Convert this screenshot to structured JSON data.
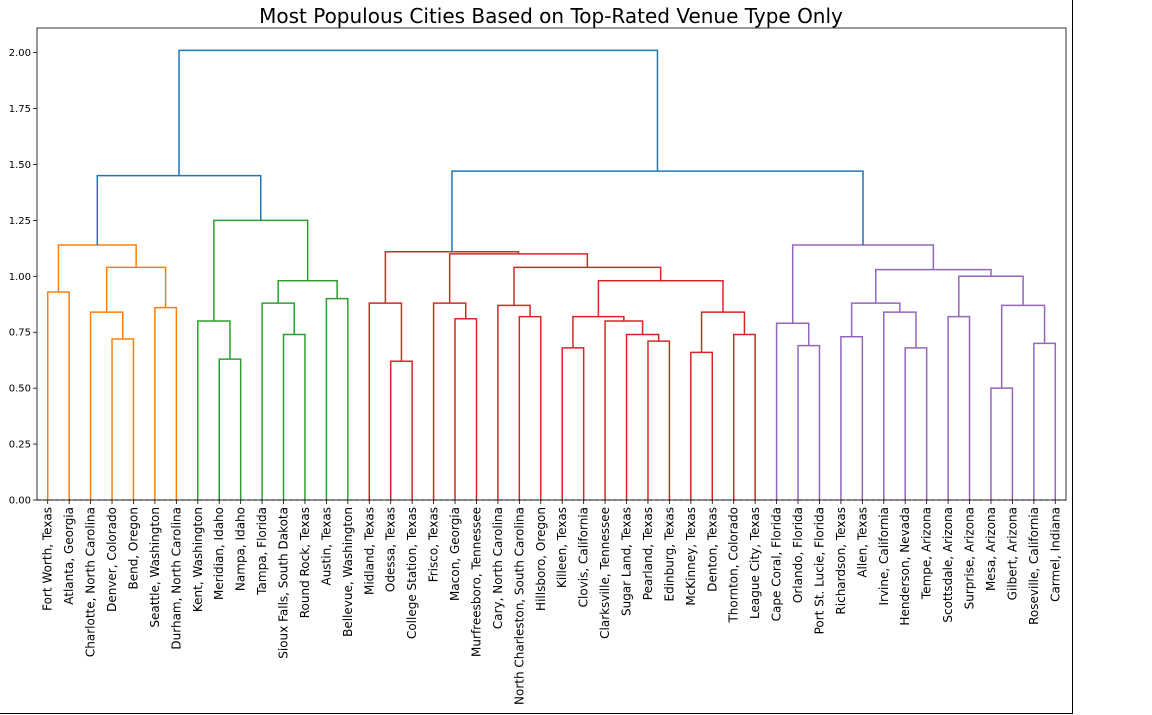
{
  "chart_data": {
    "type": "dendrogram",
    "title": "Most Populous Cities Based on Top-Rated Venue Type Only",
    "xlabel": "",
    "ylabel": "",
    "ylim": [
      0,
      2.11
    ],
    "yticks": [
      "0.00",
      "0.25",
      "0.50",
      "0.75",
      "1.00",
      "1.25",
      "1.50",
      "1.75",
      "2.00"
    ],
    "ytick_values": [
      0,
      0.25,
      0.5,
      0.75,
      1.0,
      1.25,
      1.5,
      1.75,
      2.0
    ],
    "threshold_line": 0,
    "grid": false,
    "colors": {
      "C0": "#1f77b4",
      "C1": "#ff7f0e",
      "C2": "#2ca02c",
      "C3": "#d62728",
      "C4": "#9467bd"
    },
    "leaves": [
      "Fort Worth, Texas",
      "Atlanta, Georgia",
      "Charlotte, North Carolina",
      "Denver, Colorado",
      "Bend, Oregon",
      "Seattle, Washington",
      "Durham, North Carolina",
      "Kent, Washington",
      "Meridian, Idaho",
      "Nampa, Idaho",
      "Tampa, Florida",
      "Sioux Falls, South Dakota",
      "Round Rock, Texas",
      "Austin, Texas",
      "Bellevue, Washington",
      "Midland, Texas",
      "Odessa, Texas",
      "College Station, Texas",
      "Frisco, Texas",
      "Macon, Georgia",
      "Murfreesboro, Tennessee",
      "Cary, North Carolina",
      "North Charleston, South Carolina",
      "Hillsboro, Oregon",
      "Killeen, Texas",
      "Clovis, California",
      "Clarksville, Tennessee",
      "Sugar Land, Texas",
      "Pearland, Texas",
      "Edinburg, Texas",
      "McKinney, Texas",
      "Denton, Texas",
      "Thornton, Colorado",
      "League City, Texas",
      "Cape Coral, Florida",
      "Orlando, Florida",
      "Port St. Lucie, Florida",
      "Richardson, Texas",
      "Allen, Texas",
      "Irvine, California",
      "Henderson, Nevada",
      "Tempe, Arizona",
      "Scottsdale, Arizona",
      "Surprise, Arizona",
      "Mesa, Arizona",
      "Gilbert, Arizona",
      "Roseville, California",
      "Carmel, Indiana"
    ],
    "merges": [
      [
        0,
        1,
        0.93,
        "C1"
      ],
      [
        3,
        4,
        0.72,
        "C1"
      ],
      [
        2,
        49,
        0.84,
        "C1"
      ],
      [
        5,
        6,
        0.86,
        "C1"
      ],
      [
        50,
        51,
        1.04,
        "C1"
      ],
      [
        48,
        52,
        1.14,
        "C1"
      ],
      [
        8,
        9,
        0.63,
        "C2"
      ],
      [
        7,
        54,
        0.8,
        "C2"
      ],
      [
        11,
        12,
        0.74,
        "C2"
      ],
      [
        10,
        56,
        0.88,
        "C2"
      ],
      [
        13,
        14,
        0.9,
        "C2"
      ],
      [
        57,
        58,
        0.98,
        "C2"
      ],
      [
        55,
        59,
        1.25,
        "C2"
      ],
      [
        53,
        60,
        1.45,
        "C0"
      ],
      [
        16,
        17,
        0.62,
        "C3"
      ],
      [
        15,
        62,
        0.88,
        "C3"
      ],
      [
        19,
        20,
        0.81,
        "C3"
      ],
      [
        18,
        64,
        0.88,
        "C3"
      ],
      [
        22,
        23,
        0.82,
        "C3"
      ],
      [
        21,
        66,
        0.87,
        "C3"
      ],
      [
        24,
        25,
        0.68,
        "C3"
      ],
      [
        28,
        29,
        0.71,
        "C3"
      ],
      [
        27,
        69,
        0.74,
        "C3"
      ],
      [
        26,
        70,
        0.8,
        "C3"
      ],
      [
        68,
        71,
        0.82,
        "C3"
      ],
      [
        30,
        31,
        0.66,
        "C3"
      ],
      [
        32,
        33,
        0.74,
        "C3"
      ],
      [
        73,
        74,
        0.84,
        "C3"
      ],
      [
        72,
        75,
        0.98,
        "C3"
      ],
      [
        67,
        76,
        1.04,
        "C3"
      ],
      [
        65,
        77,
        1.1,
        "C3"
      ],
      [
        63,
        78,
        1.11,
        "C3"
      ],
      [
        35,
        36,
        0.69,
        "C4"
      ],
      [
        34,
        80,
        0.79,
        "C4"
      ],
      [
        37,
        38,
        0.73,
        "C4"
      ],
      [
        40,
        41,
        0.68,
        "C4"
      ],
      [
        39,
        83,
        0.84,
        "C4"
      ],
      [
        82,
        84,
        0.88,
        "C4"
      ],
      [
        42,
        43,
        0.82,
        "C4"
      ],
      [
        44,
        45,
        0.5,
        "C4"
      ],
      [
        46,
        47,
        0.7,
        "C4"
      ],
      [
        87,
        88,
        0.87,
        "C4"
      ],
      [
        86,
        89,
        1.0,
        "C4"
      ],
      [
        85,
        90,
        1.03,
        "C4"
      ],
      [
        81,
        91,
        1.14,
        "C4"
      ],
      [
        79,
        92,
        1.47,
        "C0"
      ],
      [
        61,
        93,
        2.01,
        "C0"
      ]
    ]
  }
}
